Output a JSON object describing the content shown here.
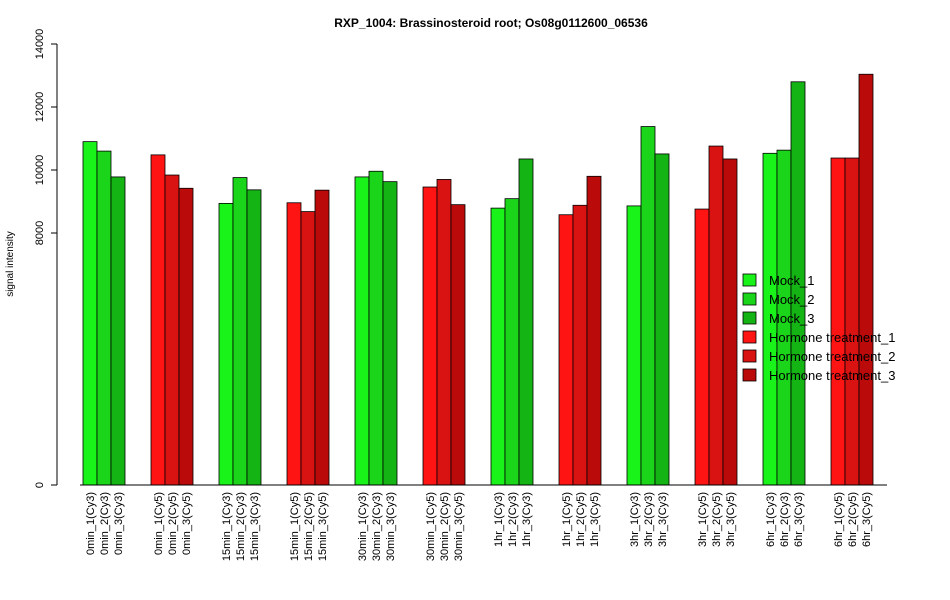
{
  "chart_data": {
    "type": "bar",
    "title": "RXP_1004: Brassinosteroid root; Os08g0112600_06536",
    "xlabel": "",
    "ylabel": "signal intensity",
    "ylim": [
      0,
      14000
    ],
    "y_ticks": [
      "0",
      "8000",
      "10000",
      "12000",
      "14000"
    ],
    "y_tick_values": [
      0,
      8000,
      10000,
      12000,
      14000
    ],
    "grid": false,
    "legend_position": "right",
    "groups": [
      {
        "bars": [
          {
            "label": "0min_1(Cy3)",
            "value": 10900,
            "series": 0
          },
          {
            "label": "0min_2(Cy3)",
            "value": 10600,
            "series": 1
          },
          {
            "label": "0min_3(Cy3)",
            "value": 9780,
            "series": 2
          }
        ]
      },
      {
        "bars": [
          {
            "label": "0min_1(Cy5)",
            "value": 10480,
            "series": 3
          },
          {
            "label": "0min_2(Cy5)",
            "value": 9840,
            "series": 4
          },
          {
            "label": "0min_3(Cy5)",
            "value": 9420,
            "series": 5
          }
        ]
      },
      {
        "bars": [
          {
            "label": "15min_1(Cy3)",
            "value": 8940,
            "series": 0
          },
          {
            "label": "15min_2(Cy3)",
            "value": 9760,
            "series": 1
          },
          {
            "label": "15min_3(Cy3)",
            "value": 9370,
            "series": 2
          }
        ]
      },
      {
        "bars": [
          {
            "label": "15min_1(Cy5)",
            "value": 8960,
            "series": 3
          },
          {
            "label": "15min_2(Cy5)",
            "value": 8680,
            "series": 4
          },
          {
            "label": "15min_3(Cy5)",
            "value": 9360,
            "series": 5
          }
        ]
      },
      {
        "bars": [
          {
            "label": "30min_1(Cy3)",
            "value": 9780,
            "series": 0
          },
          {
            "label": "30min_2(Cy3)",
            "value": 9960,
            "series": 1
          },
          {
            "label": "30min_3(Cy3)",
            "value": 9630,
            "series": 2
          }
        ]
      },
      {
        "bars": [
          {
            "label": "30min_1(Cy5)",
            "value": 9460,
            "series": 3
          },
          {
            "label": "30min_2(Cy5)",
            "value": 9700,
            "series": 4
          },
          {
            "label": "30min_3(Cy5)",
            "value": 8900,
            "series": 5
          }
        ]
      },
      {
        "bars": [
          {
            "label": "1hr_1(Cy3)",
            "value": 8790,
            "series": 0
          },
          {
            "label": "1hr_2(Cy3)",
            "value": 9090,
            "series": 1
          },
          {
            "label": "1hr_3(Cy3)",
            "value": 10350,
            "series": 2
          }
        ]
      },
      {
        "bars": [
          {
            "label": "1hr_1(Cy5)",
            "value": 8580,
            "series": 3
          },
          {
            "label": "1hr_2(Cy5)",
            "value": 8880,
            "series": 4
          },
          {
            "label": "1hr_3(Cy5)",
            "value": 9800,
            "series": 5
          }
        ]
      },
      {
        "bars": [
          {
            "label": "3hr_1(Cy3)",
            "value": 8860,
            "series": 0
          },
          {
            "label": "3hr_2(Cy3)",
            "value": 11380,
            "series": 1
          },
          {
            "label": "3hr_3(Cy3)",
            "value": 10510,
            "series": 2
          }
        ]
      },
      {
        "bars": [
          {
            "label": "3hr_1(Cy5)",
            "value": 8760,
            "series": 3
          },
          {
            "label": "3hr_2(Cy5)",
            "value": 10760,
            "series": 4
          },
          {
            "label": "3hr_3(Cy5)",
            "value": 10350,
            "series": 5
          }
        ]
      },
      {
        "bars": [
          {
            "label": "6hr_1(Cy3)",
            "value": 10530,
            "series": 0
          },
          {
            "label": "6hr_2(Cy3)",
            "value": 10630,
            "series": 1
          },
          {
            "label": "6hr_3(Cy3)",
            "value": 12800,
            "series": 2
          }
        ]
      },
      {
        "bars": [
          {
            "label": "6hr_1(Cy5)",
            "value": 10380,
            "series": 3
          },
          {
            "label": "6hr_2(Cy5)",
            "value": 10380,
            "series": 4
          },
          {
            "label": "6hr_3(Cy5)",
            "value": 13040,
            "series": 5
          }
        ]
      }
    ],
    "series": [
      {
        "name": "Mock_1",
        "color": "#1AF31A"
      },
      {
        "name": "Mock_2",
        "color": "#1AD51A"
      },
      {
        "name": "Mock_3",
        "color": "#14B414"
      },
      {
        "name": "Hormone treatment_1",
        "color": "#FF1414"
      },
      {
        "name": "Hormone treatment_2",
        "color": "#D91212"
      },
      {
        "name": "Hormone treatment_3",
        "color": "#BA0A0A"
      }
    ]
  }
}
